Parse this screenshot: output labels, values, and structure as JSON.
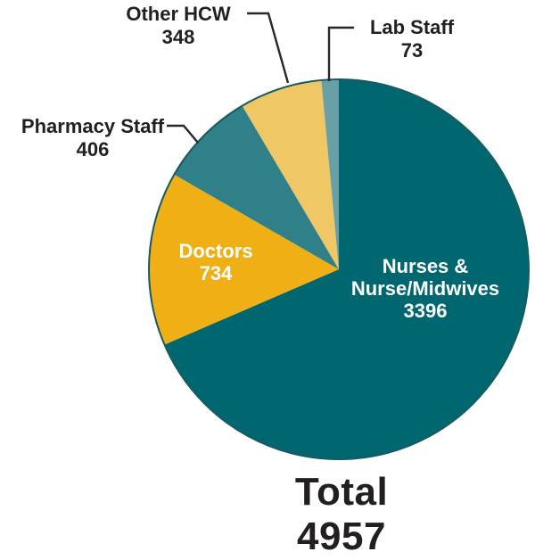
{
  "figure": {
    "background": "#FFFFFF",
    "text_color": "#231F20",
    "leader_line_color": "#2B2728",
    "pie_outline_color": "#175A60"
  },
  "chart_data": {
    "type": "pie",
    "title": "",
    "direction": "clockwise",
    "start_angle_deg": 0,
    "legend": "none",
    "categories": [
      "Nurses & Nurse/Midwives",
      "Doctors",
      "Pharmacy Staff",
      "Other HCW",
      "Lab Staff"
    ],
    "values": [
      3396,
      734,
      406,
      348,
      73
    ],
    "slices": [
      {
        "name": "nurses-nurse-midwives",
        "label": "Nurses & Nurse/Midwives",
        "label_lines": [
          "Nurses &",
          "Nurse/Midwives"
        ],
        "value": 3396,
        "color": "#006770",
        "text_color": "#FFFFFF",
        "label_placement": "inside"
      },
      {
        "name": "doctors",
        "label": "Doctors",
        "value": 734,
        "color": "#EFAF15",
        "text_color": "#FFFFFF",
        "label_placement": "inside"
      },
      {
        "name": "pharmacy-staff",
        "label": "Pharmacy Staff",
        "value": 406,
        "color": "#2F8088",
        "text_color": "#231F20",
        "label_placement": "callout"
      },
      {
        "name": "other-hcw",
        "label": "Other HCW",
        "value": 348,
        "color": "#F0C765",
        "text_color": "#231F20",
        "label_placement": "callout"
      },
      {
        "name": "lab-staff",
        "label": "Lab Staff",
        "value": 73,
        "color": "#69A0A6",
        "text_color": "#231F20",
        "label_placement": "callout"
      }
    ],
    "total": {
      "label": "Total",
      "value": 4957
    }
  }
}
